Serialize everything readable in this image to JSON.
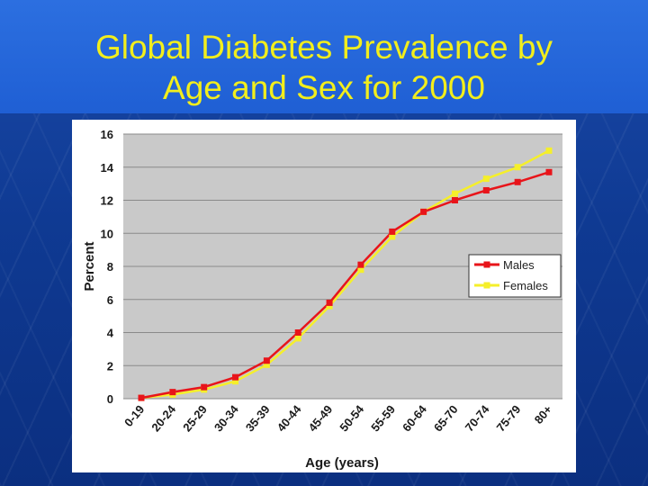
{
  "slide": {
    "title_line1": "Global Diabetes Prevalence by",
    "title_line2": "Age and Sex for 2000",
    "title_color": "#f2ee1c"
  },
  "chart_data": {
    "type": "line",
    "xlabel": "Age (years)",
    "ylabel": "Percent",
    "ylim": [
      0,
      16
    ],
    "yticks": [
      0,
      2,
      4,
      6,
      8,
      10,
      12,
      14,
      16
    ],
    "grid": true,
    "legend_position": "right",
    "categories": [
      "0-19",
      "20-24",
      "25-29",
      "30-34",
      "35-39",
      "40-44",
      "45-49",
      "50-54",
      "55-59",
      "60-64",
      "65-70",
      "70-74",
      "75-79",
      "80+"
    ],
    "series": [
      {
        "name": "Males",
        "color": "#e8141a",
        "marker_color": "#e8141a",
        "values": [
          0.05,
          0.4,
          0.7,
          1.3,
          2.3,
          4.0,
          5.8,
          8.1,
          10.1,
          11.3,
          12.0,
          12.6,
          13.1,
          13.7
        ]
      },
      {
        "name": "Females",
        "color": "#f5ef2a",
        "marker_color": "#f5ef2a",
        "values": [
          0.05,
          0.25,
          0.55,
          1.05,
          2.05,
          3.65,
          5.6,
          7.8,
          9.8,
          11.3,
          12.4,
          13.3,
          14.0,
          15.0
        ]
      }
    ]
  }
}
